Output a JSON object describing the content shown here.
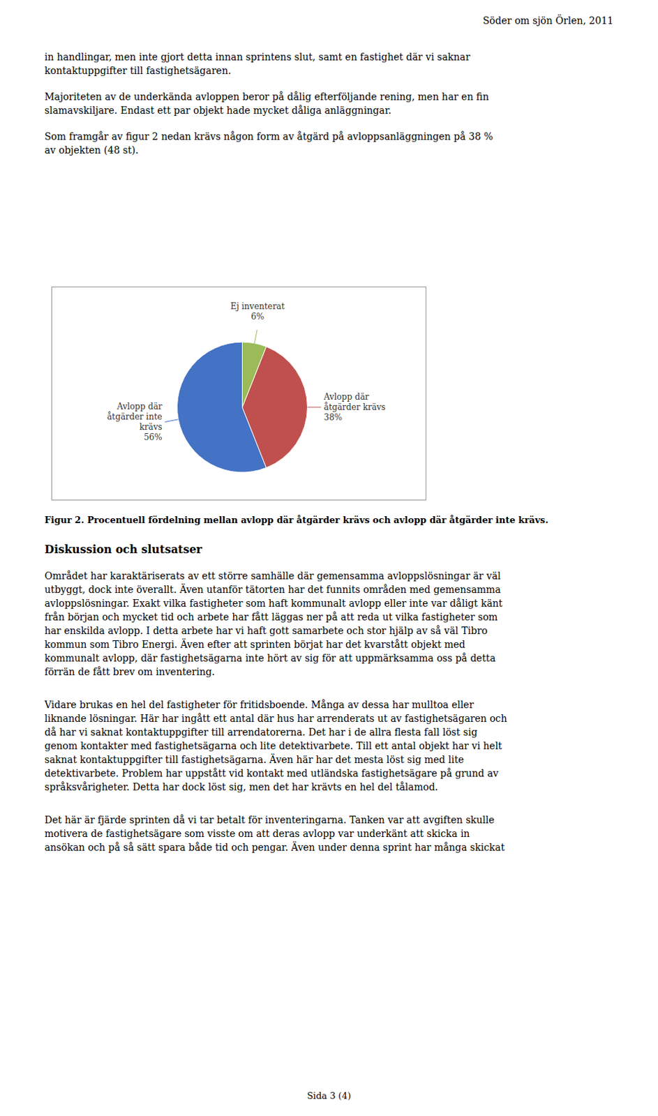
{
  "chart_data": {
    "type": "pie",
    "title": "Figur 2. Procentuell fördelning mellan avlopp där åtgärder krävs och avlopp där åtgärder inte krävs.",
    "categories": [
      "Avlopp där\nåtgärder inte\nkrävs",
      "Avlopp där\nåtgärder krävs",
      "Ej inventerat"
    ],
    "values": [
      56,
      38,
      6
    ],
    "value_labels": [
      "56%",
      "38%",
      "6%"
    ],
    "colors": [
      "#4472C4",
      "#C0504D",
      "#9BBB59"
    ],
    "data_labels": true,
    "annotations": [
      [
        "Söder om sjön Örlen, 2011"
      ],
      [
        "in handlingar, men inte gjort detta innan sprintens slut, samt en fastighet där vi saknar",
        "kontaktuppgifter till fastighetsägaren."
      ],
      [
        "Majoriteten av de underkända avloppen beror på dålig efterföljande rening, men har en fin",
        "slamavskiljare. Endast ett par objekt hade mycket dåliga anläggningar."
      ],
      [
        "Som framgår av figur 2 nedan krävs någon form av åtgärd på avloppsanläggningen på 38 %",
        "av objekten (48 st)."
      ],
      [
        "Diskussion och slutsatser"
      ],
      [
        "Området har karaktäriserats av ett större samhälle där gemensamma avloppslösningar är väl",
        "utbyggt, dock inte överallt. Även utanför tätorten har det funnits områden med gemensamma",
        "avloppslösningar. Exakt vilka fastigheter som haft kommunalt avlopp eller inte var dåligt känt",
        "från början och mycket tid och arbete har fått läggas ner på att reda ut vilka fastigheter som",
        "har enskilda avlopp. I detta arbete har vi haft gott samarbete och stor hjälp av så väl Tibro",
        "kommun som Tibro Energi. Även efter att sprinten börjat har det kvarstått objekt med",
        "kommunalt avlopp, där fastighetsägarna inte hört av sig för att uppmärksamma oss på detta",
        "förrän de fått brev om inventering."
      ],
      [
        "Vidare brukas en hel del fastigheter för fritidsboende. Många av dessa har mulltoa eller",
        "liknande lösningar. Här har ingått ett antal där hus har arrenderats ut av fastighetsägaren och",
        "då har vi saknat kontaktuppgifter till arrendatorerna. Det har i de allra flesta fall löst sig",
        "genom kontakter med fastighetsägarna och lite detektivarbete. Till ett antal objekt har vi helt",
        "saknat kontaktuppgifter till fastighetsägarna. Även här har det mesta löst sig med lite",
        "detektivarbete. Problem har uppstått vid kontakt med utländska fastighetsägare på grund av",
        "språksvårigheter. Detta har dock löst sig, men det har krävts en hel del tålamod."
      ],
      [
        "Det här är fjärde sprinten då vi tar betalt för inventeringarna. Tanken var att avgiften skulle",
        "motivera de fastighetsägare som visste om att deras avlopp var underkänt att skicka in",
        "ansökan och på så sätt spara både tid och pengar. Även under denna sprint har många skickat"
      ],
      [
        "Sida 3 (4)"
      ]
    ]
  }
}
